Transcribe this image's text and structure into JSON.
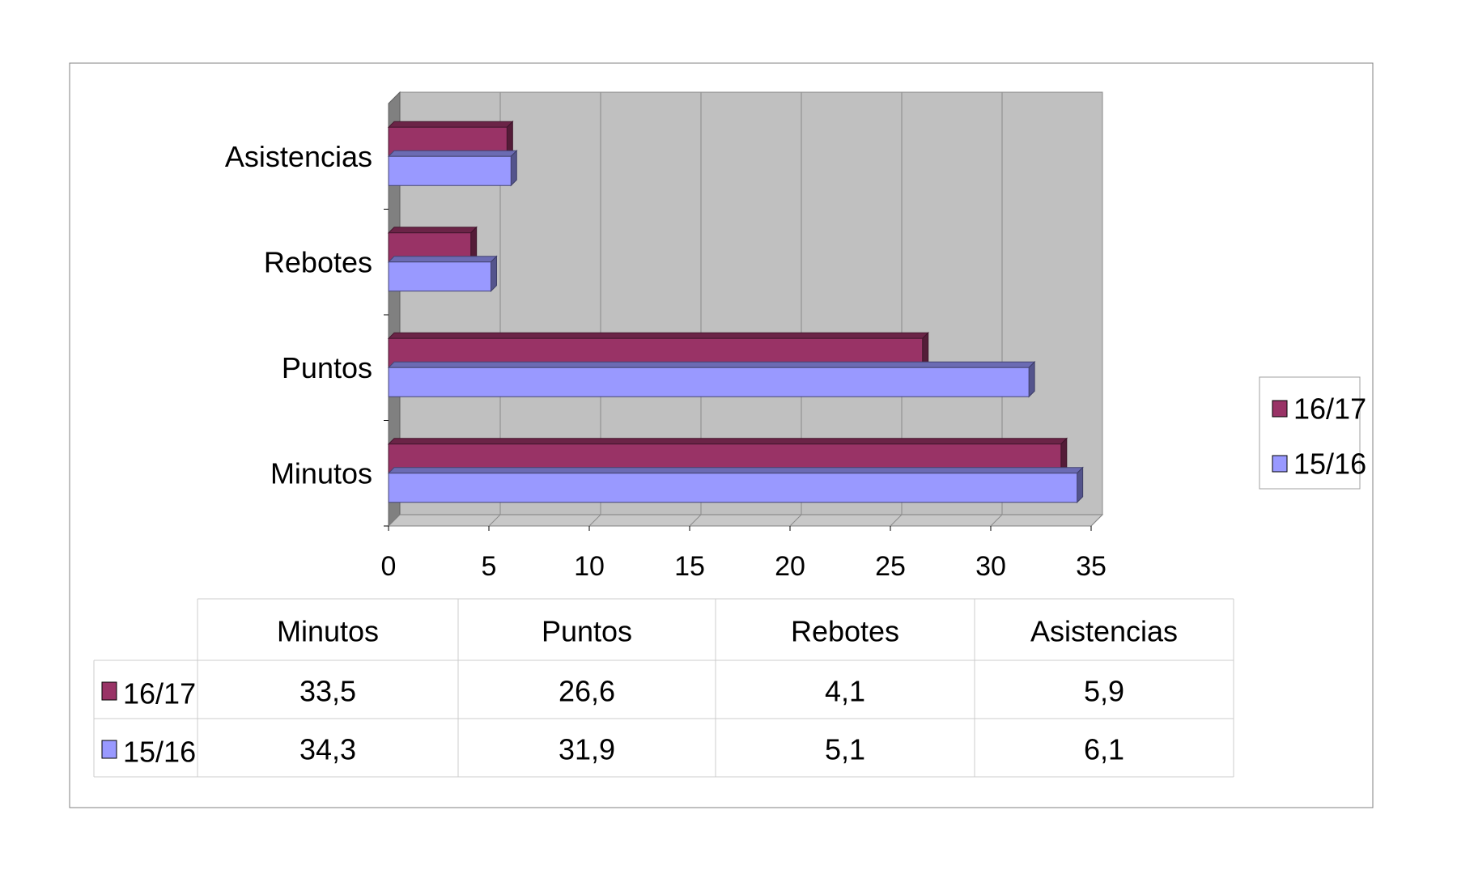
{
  "chart_data": {
    "type": "bar",
    "orientation": "horizontal",
    "style": "3d",
    "categories": [
      "Minutos",
      "Puntos",
      "Rebotes",
      "Asistencias"
    ],
    "series": [
      {
        "name": "16/17",
        "values": [
          33.5,
          26.6,
          4.1,
          5.9
        ],
        "labels": [
          "33,5",
          "26,6",
          "4,1",
          "5,9"
        ],
        "color": "#993366"
      },
      {
        "name": "15/16",
        "values": [
          34.3,
          31.9,
          5.1,
          6.1
        ],
        "labels": [
          "34,3",
          "31,9",
          "5,1",
          "6,1"
        ],
        "color": "#9999ff"
      }
    ],
    "xlim": [
      0,
      35
    ],
    "xticks": [
      0,
      5,
      10,
      15,
      20,
      25,
      30,
      35
    ],
    "grid": true,
    "legend": "right",
    "data_table": true,
    "plot_background": "#c0c0c0"
  }
}
